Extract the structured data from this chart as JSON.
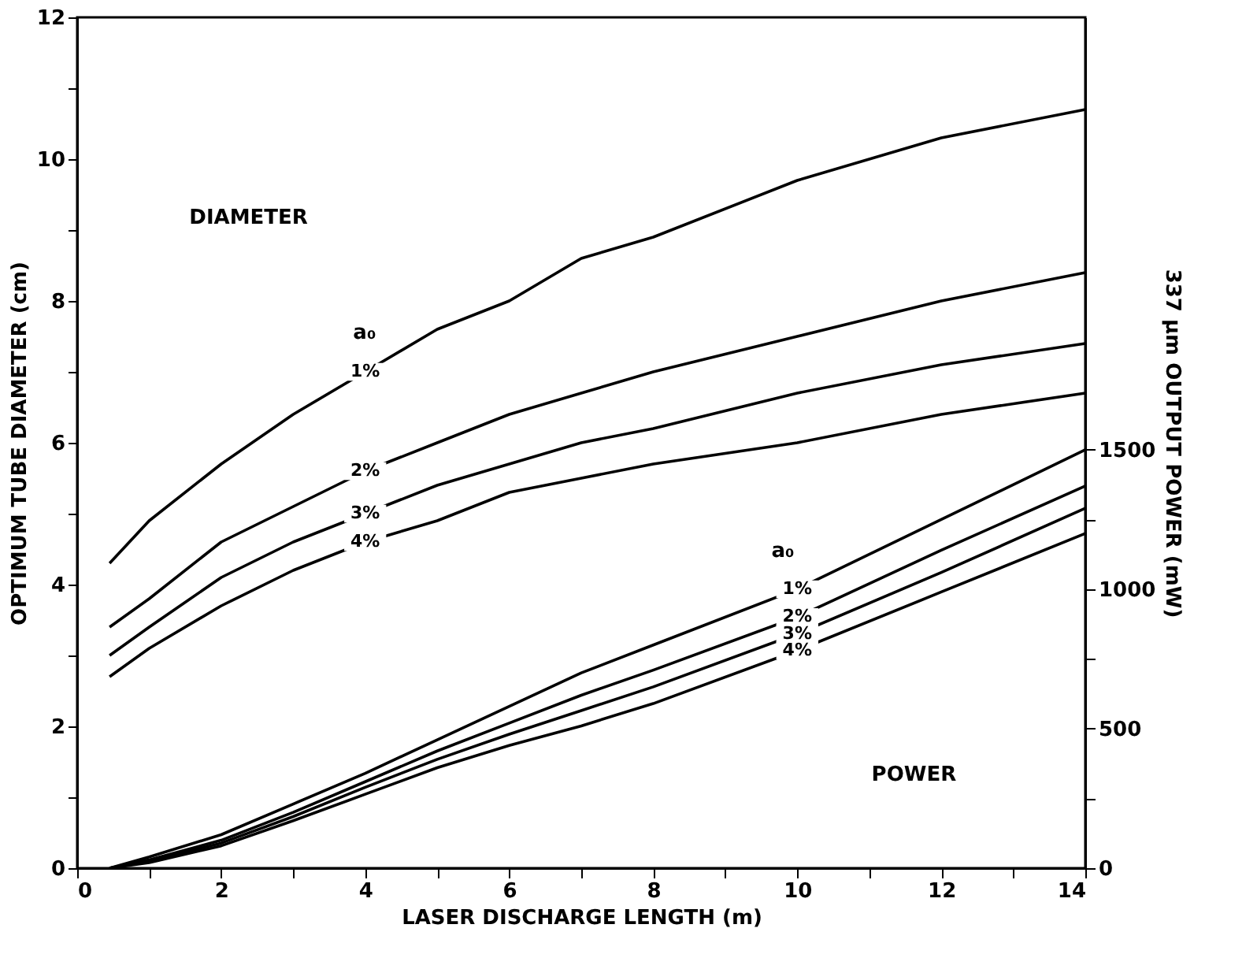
{
  "chart_data": {
    "type": "line",
    "xlabel": "LASER DISCHARGE LENGTH (m)",
    "ylabel": "OPTIMUM TUBE DIAMETER (cm)",
    "y2label": "337 μm OUTPUT POWER (mW)",
    "xlim": [
      0,
      14
    ],
    "ylim": [
      0,
      12
    ],
    "y2lim": [
      0,
      3050
    ],
    "xticks": [
      0,
      {
        "value": 1,
        "label": null
      },
      2,
      {
        "value": 3,
        "label": null
      },
      4,
      {
        "value": 5,
        "label": null
      },
      6,
      {
        "value": 7,
        "label": null
      },
      8,
      {
        "value": 9,
        "label": null
      },
      10,
      {
        "value": 11,
        "label": null
      },
      12,
      {
        "value": 13,
        "label": null
      },
      14
    ],
    "yticks": [
      0,
      {
        "value": 1,
        "label": null
      },
      2,
      {
        "value": 3,
        "label": null
      },
      4,
      {
        "value": 5,
        "label": null
      },
      6,
      {
        "value": 7,
        "label": null
      },
      8,
      {
        "value": 9,
        "label": null
      },
      10,
      {
        "value": 11,
        "label": null
      },
      12
    ],
    "y2ticks": [
      0,
      {
        "value": 250,
        "label": null
      },
      500,
      {
        "value": 750,
        "label": null
      },
      1000,
      {
        "value": 1250,
        "label": null
      },
      1500
    ],
    "grid": false,
    "line_style": "solid",
    "series": [
      {
        "name": "1%",
        "color": "#000000",
        "x": [
          0.45,
          1,
          2,
          3,
          4,
          5,
          6,
          7,
          8,
          10,
          12,
          14
        ],
        "values": [
          4.3,
          4.9,
          5.7,
          6.4,
          7.0,
          7.6,
          8.0,
          8.6,
          8.9,
          9.7,
          10.3,
          10.7
        ]
      },
      {
        "name": "2%",
        "color": "#000000",
        "x": [
          0.45,
          1,
          2,
          3,
          4,
          5,
          6,
          7,
          8,
          10,
          12,
          14
        ],
        "values": [
          3.4,
          3.8,
          4.6,
          5.1,
          5.6,
          6.0,
          6.4,
          6.7,
          7.0,
          7.5,
          8.0,
          8.4
        ]
      },
      {
        "name": "3%",
        "color": "#000000",
        "x": [
          0.45,
          1,
          2,
          3,
          4,
          5,
          6,
          7,
          8,
          10,
          12,
          14
        ],
        "values": [
          3.0,
          3.4,
          4.1,
          4.6,
          5.0,
          5.4,
          5.7,
          6.0,
          6.2,
          6.7,
          7.1,
          7.4
        ]
      },
      {
        "name": "4%",
        "color": "#000000",
        "x": [
          0.45,
          1,
          2,
          3,
          4,
          5,
          6,
          7,
          8,
          10,
          12,
          14
        ],
        "values": [
          2.7,
          3.1,
          3.7,
          4.2,
          4.6,
          4.9,
          5.3,
          5.5,
          5.7,
          6.0,
          6.4,
          6.7
        ]
      },
      {
        "name": "1%",
        "color": "#000000",
        "axis": "y2",
        "x": [
          0.45,
          1,
          2,
          3,
          4,
          5,
          6,
          7,
          8,
          10,
          12,
          14
        ],
        "values": [
          0,
          40,
          120,
          230,
          340,
          460,
          580,
          700,
          800,
          1000,
          1250,
          1500
        ]
      },
      {
        "name": "2%",
        "color": "#000000",
        "axis": "y2",
        "x": [
          0.45,
          1,
          2,
          3,
          4,
          5,
          6,
          7,
          8,
          10,
          12,
          14
        ],
        "values": [
          0,
          30,
          100,
          200,
          310,
          420,
          520,
          620,
          710,
          900,
          1140,
          1370
        ]
      },
      {
        "name": "3%",
        "color": "#000000",
        "axis": "y2",
        "x": [
          0.45,
          1,
          2,
          3,
          4,
          5,
          6,
          7,
          8,
          10,
          12,
          14
        ],
        "values": [
          0,
          25,
          90,
          185,
          290,
          390,
          480,
          565,
          650,
          840,
          1060,
          1290
        ]
      },
      {
        "name": "4%",
        "color": "#000000",
        "axis": "y2",
        "x": [
          0.45,
          1,
          2,
          3,
          4,
          5,
          6,
          7,
          8,
          10,
          12,
          14
        ],
        "values": [
          0,
          20,
          80,
          170,
          265,
          360,
          440,
          510,
          590,
          780,
          990,
          1200
        ]
      }
    ],
    "annotations": [
      "DIAMETER",
      "a₀",
      "a₀",
      "POWER"
    ]
  }
}
